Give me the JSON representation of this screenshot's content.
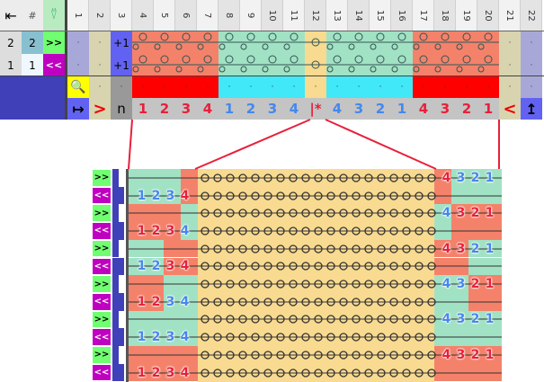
{
  "controls": {
    "first_icon": "⇤",
    "hash": "#",
    "yarn_icon": "yarn-carrier-icon",
    "rows": [
      {
        "num": "2",
        "count": "2",
        "dir": ">>"
      },
      {
        "num": "1",
        "count": "1",
        "dir": "<<"
      }
    ]
  },
  "columns": [
    "1",
    "2",
    "3",
    "4",
    "5",
    "6",
    "7",
    "8",
    "9",
    "10",
    "11",
    "12",
    "13",
    "14",
    "15",
    "16",
    "17",
    "18",
    "19",
    "20",
    "21",
    "22"
  ],
  "top_rows": [
    {
      "c1": "·",
      "c2": "·",
      "c3": "+1",
      "c21": "·",
      "c22": "·"
    },
    {
      "c1": "·",
      "c2": "·",
      "c3": "+1",
      "c21": "·",
      "c22": "·"
    }
  ],
  "pattern_colors": [
    "r",
    "r",
    "r",
    "r",
    "g",
    "g",
    "g",
    "g",
    "y",
    "g",
    "g",
    "g",
    "g",
    "r",
    "r",
    "r",
    "r"
  ],
  "colors": {
    "r": "#f4826a",
    "g": "#a2e2c4",
    "y": "#f8da90",
    "R": "#ff0000",
    "G": "#40e8f8",
    "blue": "#6262f2",
    "tan": "#d8d4b0",
    "lav": "#a8a8d8",
    "navy": "#4040b8",
    "red_text": "#e8203a",
    "blue_text": "#4488ee",
    "line": "#e8203a"
  },
  "bottom_row": {
    "left_arrow": "↦",
    "right_marker": ">",
    "n": "n",
    "labels": [
      "1",
      "2",
      "3",
      "4",
      "1",
      "2",
      "3",
      "4",
      "|*",
      "4",
      "3",
      "2",
      "1",
      "4",
      "3",
      "2",
      "1"
    ],
    "label_colors": [
      "r",
      "r",
      "r",
      "r",
      "b",
      "b",
      "b",
      "b",
      "r",
      "b",
      "b",
      "b",
      "b",
      "r",
      "r",
      "r",
      "r"
    ],
    "left_marker": "<",
    "right_icon": "↥"
  },
  "detail": {
    "pairs": [
      {
        "left": "bbbr",
        "right": "rbbb"
      },
      {
        "left": "rrrb",
        "right": "brrr"
      },
      {
        "left": "bbrr",
        "right": "rrbb"
      },
      {
        "left": "rrbb",
        "right": "bbrr"
      },
      {
        "left": "bbbb",
        "right": "bbbb"
      },
      {
        "left": "rrrr",
        "right": "rrrr"
      }
    ],
    "fwd": ">>",
    "back": "<<",
    "left_nums": [
      "1",
      "2",
      "3",
      "4"
    ],
    "right_nums": [
      "4",
      "3",
      "2",
      "1"
    ]
  }
}
